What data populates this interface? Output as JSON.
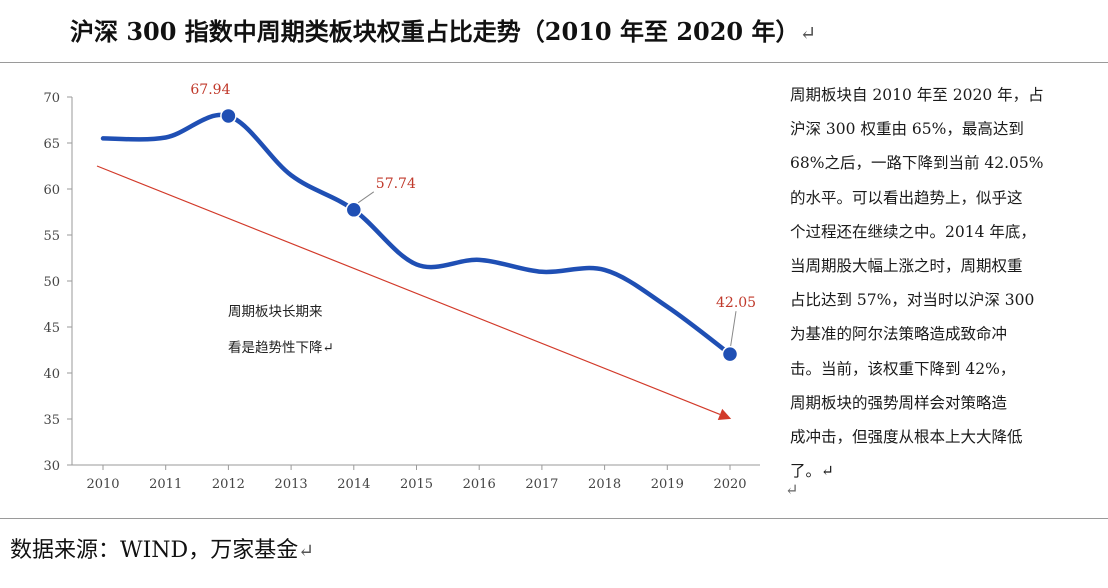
{
  "title": "沪深 300 指数中周期类板块权重占比走势（2010 年至 2020 年）",
  "title_mark": "↵",
  "source": "数据来源：WIND，万家基金",
  "source_mark": "↵",
  "side_text_lines": [
    "周期板块自 2010 年至 2020 年，占",
    "沪深 300 权重由 65%，最高达到",
    "68%之后，一路下降到当前 42.05%",
    "的水平。可以看出趋势上，似乎这",
    "个过程还在继续之中。2014 年底，",
    "当周期股大幅上涨之时，周期权重",
    "占比达到 57%，对当时以沪深 300",
    "为基准的阿尔法策略造成致命冲",
    "击。当前，该权重下降到 42%，",
    "周期板块的强势周样会对策略造",
    "成冲击，但强度从根本上大大降低",
    "了。↵"
  ],
  "side_end_mark": "↵",
  "chart_data": {
    "type": "line",
    "x": [
      "2010",
      "2011",
      "2012",
      "2013",
      "2014",
      "2015",
      "2016",
      "2017",
      "2018",
      "2019",
      "2020"
    ],
    "ylim": [
      30,
      70
    ],
    "yticks": [
      30,
      35,
      40,
      45,
      50,
      55,
      60,
      65,
      70
    ],
    "series": [
      {
        "values": [
          65.5,
          65.6,
          67.94,
          61.5,
          57.74,
          51.8,
          52.3,
          51.0,
          51.2,
          47.2,
          42.05
        ],
        "color": "#1f4fb4"
      }
    ],
    "markers": [
      {
        "index": 2,
        "label": "67.94",
        "label_color": "#c0392b"
      },
      {
        "index": 4,
        "label": "57.74",
        "label_color": "#c0392b"
      },
      {
        "index": 10,
        "label": "42.05",
        "label_color": "#c0392b"
      }
    ],
    "trend_arrow": {
      "from": [
        2010,
        62.5
      ],
      "to": [
        2020,
        35.5
      ],
      "color": "#d23a2a"
    },
    "annotation": {
      "lines": [
        "周期板块长期来",
        "看是趋势性下降↵"
      ]
    },
    "grid": false
  }
}
